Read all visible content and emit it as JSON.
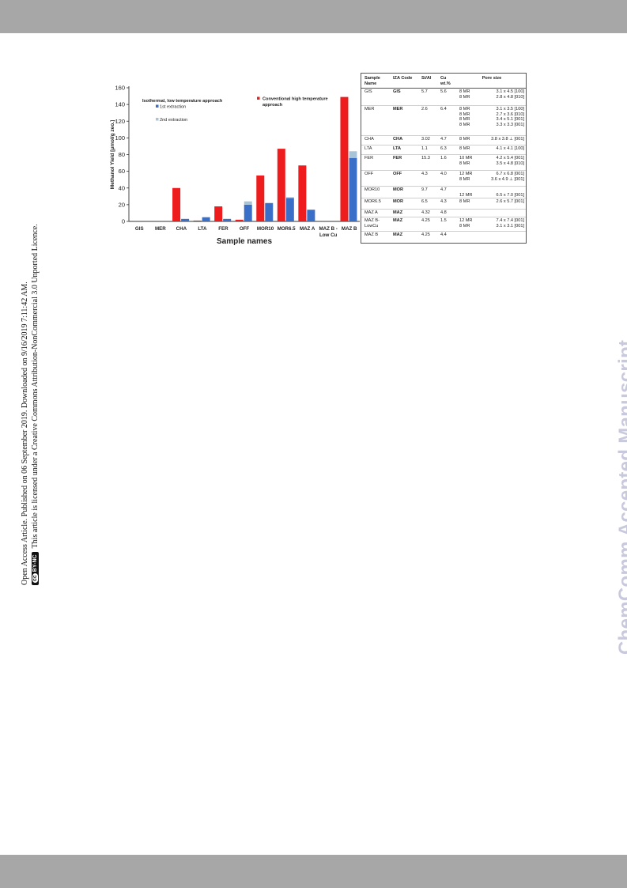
{
  "side_notice": {
    "line1": "Open Access Article. Published on 06 September 2019. Downloaded on 9/16/2019 7:11:42 AM.",
    "badge": "BY-NC",
    "line2": "This article is licensed under a Creative Commons Attribution-NonCommercial 3.0 Unported Licence."
  },
  "watermark": "ChemComm Accepted Manuscript",
  "colors": {
    "high_temp": "#ee1c1c",
    "first_extraction": "#3a6fc8",
    "second_extraction": "#a8c4d8",
    "band": "#a7a7a7",
    "watermark": "#c9c9dd"
  },
  "chart_data": {
    "type": "bar",
    "xlabel": "Sample names",
    "ylabel": "Methanol Yield [μmol/g zeo.]",
    "ylim": [
      0,
      160
    ],
    "yticks": [
      0,
      20,
      40,
      60,
      80,
      100,
      120,
      140,
      160
    ],
    "categories": [
      "GIS",
      "MER",
      "CHA",
      "LTA",
      "FER",
      "OFF",
      "MOR10",
      "MOR6.5",
      "MAZ A",
      "MAZ B - Low Cu",
      "MAZ B"
    ],
    "category_labels": [
      [
        "GIS"
      ],
      [
        "MER"
      ],
      [
        "CHA"
      ],
      [
        "LTA"
      ],
      [
        "FER"
      ],
      [
        "OFF"
      ],
      [
        "MOR10"
      ],
      [
        "MOR6.5"
      ],
      [
        "MAZ A"
      ],
      [
        "MAZ B -",
        "Low Cu"
      ],
      [
        "MAZ B"
      ]
    ],
    "series": [
      {
        "name": "Conventional high temperature approach",
        "values": [
          0,
          0,
          40,
          1,
          18,
          2,
          55,
          87,
          67,
          0,
          149
        ]
      },
      {
        "name": "1st extraction",
        "values": [
          0,
          0,
          3,
          5,
          3,
          20,
          22,
          28,
          14,
          0,
          76
        ]
      },
      {
        "name": "2nd extraction",
        "values": [
          0,
          0,
          0,
          0,
          0,
          4,
          0,
          1,
          0,
          0,
          8
        ]
      }
    ],
    "legend": {
      "group_title": "Isothermal, low temperature approach",
      "high_temp_line1": "Conventional high temperature",
      "high_temp_line2": "approach"
    }
  },
  "table": {
    "headers": [
      "Sample Name",
      "IZA Code",
      "Si/Al",
      "Cu wt.%",
      "Pore size"
    ],
    "rows": [
      {
        "sample": "GIS",
        "iza": "GIS",
        "sial": "5.7",
        "cu": "5.6",
        "mr": [
          "8 MR",
          "8 MR"
        ],
        "pores": [
          "3.1 x 4.5 [100]",
          "2.8 x 4.8 [010]"
        ]
      },
      {
        "sample": "MER",
        "iza": "MER",
        "sial": "2.6",
        "cu": "6.4",
        "mr": [
          "8 MR",
          "8 MR",
          "8 MR",
          "8 MR"
        ],
        "pores": [
          "3.1 x 3.5 [100]",
          "2.7 x 3.6 [010]",
          "3.4 x 5.1 [001]",
          "3.3 x 3.3 [001]"
        ]
      },
      {
        "sample": "CHA",
        "iza": "CHA",
        "sial": "3.02",
        "cu": "4.7",
        "mr": [
          "8 MR"
        ],
        "pores": [
          "3.8 x 3.8 ⊥ [001]"
        ]
      },
      {
        "sample": "LTA",
        "iza": "LTA",
        "sial": "1.1",
        "cu": "6.3",
        "mr": [
          "8 MR"
        ],
        "pores": [
          "4.1 x 4.1 [100]"
        ]
      },
      {
        "sample": "FER",
        "iza": "FER",
        "sial": "15.3",
        "cu": "1.6",
        "mr": [
          "10 MR",
          "8 MR"
        ],
        "pores": [
          "4.2 x 5.4 [001]",
          "3.5 x 4.8 [010]"
        ]
      },
      {
        "sample": "OFF",
        "iza": "OFF",
        "sial": "4.3",
        "cu": "4.0",
        "mr": [
          "12 MR",
          "8 MR"
        ],
        "pores": [
          "6.7 x 6.8 [001]",
          "3.6 x 4.9 ⊥ [001]"
        ]
      },
      {
        "sample": "MOR10",
        "iza": "MOR",
        "sial": "9.7",
        "cu": "4.7",
        "mr": [
          "",
          "12 MR"
        ],
        "pores": [
          "",
          "6.5 x 7.0 [001]"
        ]
      },
      {
        "sample": "MOR6.5",
        "iza": "MOR",
        "sial": "6.5",
        "cu": "4.3",
        "mr": [
          "8 MR"
        ],
        "pores": [
          "2.6 x 5.7 [001]"
        ]
      },
      {
        "sample": "MAZ A",
        "iza": "MAZ",
        "sial": "4.32",
        "cu": "4.8",
        "mr": [],
        "pores": []
      },
      {
        "sample": "MAZ B-\nLowCu",
        "iza": "MAZ",
        "sial": "4.25",
        "cu": "1.5",
        "mr": [
          "12 MR",
          "8 MR"
        ],
        "pores": [
          "7.4 x 7.4 [001]",
          "3.1 x 3.1 [001]"
        ]
      },
      {
        "sample": "MAZ B",
        "iza": "MAZ",
        "sial": "4.25",
        "cu": "4.4",
        "mr": [],
        "pores": []
      }
    ]
  }
}
